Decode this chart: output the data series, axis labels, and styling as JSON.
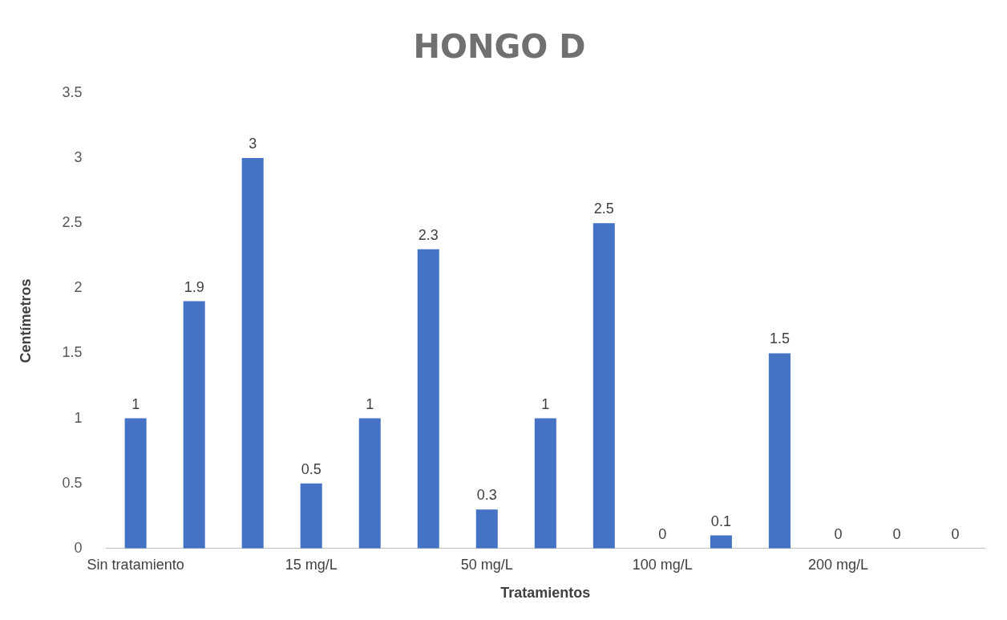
{
  "chart_data": {
    "type": "bar",
    "title": "HONGO D",
    "xlabel": "Tratamientos",
    "ylabel": "Centímetros",
    "categories": [
      "Sin tratamiento",
      null,
      null,
      "15 mg/L",
      null,
      null,
      "50 mg/L",
      null,
      null,
      "100 mg/L",
      null,
      null,
      "200 mg/L",
      null,
      null
    ],
    "values": [
      1,
      1.9,
      3,
      0.5,
      1,
      2.3,
      0.3,
      1,
      2.5,
      0,
      0.1,
      1.5,
      0,
      0,
      0
    ],
    "color": "#4472c4",
    "ylim": [
      0,
      3.5
    ],
    "yticks": [
      0,
      0.5,
      1,
      1.5,
      2,
      2.5,
      3,
      3.5
    ],
    "grid": false,
    "legend": false,
    "data_labels": true
  }
}
